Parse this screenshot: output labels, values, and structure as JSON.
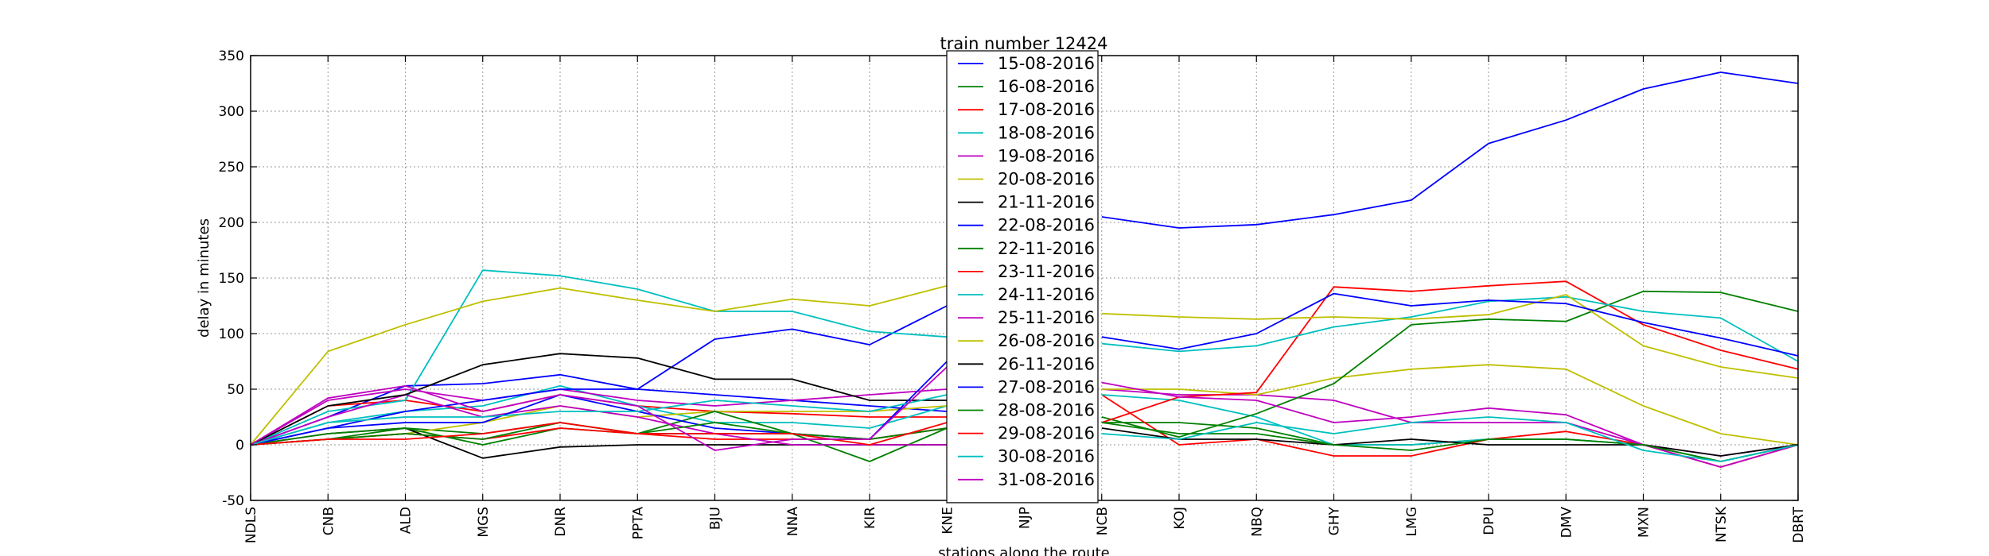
{
  "chart_data": {
    "type": "line",
    "title": "train number 12424",
    "xlabel": "stations along the route",
    "ylabel": "delay in minutes",
    "ylim": [
      -50,
      350
    ],
    "yticks": [
      -50,
      0,
      50,
      100,
      150,
      200,
      250,
      300,
      350
    ],
    "grid": true,
    "legend_position": "top-center",
    "categories": [
      "NDLS",
      "CNB",
      "ALD",
      "MGS",
      "DNR",
      "PPTA",
      "BJU",
      "NNA",
      "KIR",
      "KNE",
      "NJP",
      "NCB",
      "KOJ",
      "NBQ",
      "GHY",
      "LMG",
      "DPU",
      "DMV",
      "MXN",
      "NTSK",
      "DBRT"
    ],
    "series": [
      {
        "name": "15-08-2016",
        "color": "#0000ff",
        "values": [
          0,
          25,
          53,
          55,
          63,
          50,
          45,
          40,
          35,
          30,
          null,
          null,
          null,
          null,
          null,
          null,
          null,
          null,
          null,
          null,
          null
        ]
      },
      {
        "name": "16-08-2016",
        "color": "#008000",
        "values": [
          0,
          5,
          15,
          10,
          20,
          10,
          10,
          10,
          5,
          15,
          null,
          20,
          20,
          15,
          0,
          0,
          5,
          5,
          0,
          -15,
          0
        ]
      },
      {
        "name": "17-08-2016",
        "color": "#ff0000",
        "values": [
          0,
          35,
          40,
          30,
          45,
          35,
          30,
          28,
          25,
          25,
          null,
          45,
          0,
          5,
          -10,
          -10,
          5,
          12,
          0,
          -20,
          0
        ]
      },
      {
        "name": "18-08-2016",
        "color": "#00bfbf",
        "values": [
          0,
          20,
          30,
          35,
          53,
          35,
          20,
          20,
          15,
          35,
          null,
          45,
          40,
          25,
          0,
          0,
          5,
          5,
          0,
          -15,
          0
        ]
      },
      {
        "name": "19-08-2016",
        "color": "#bf00bf",
        "values": [
          0,
          40,
          50,
          40,
          50,
          40,
          35,
          40,
          45,
          50,
          null,
          50,
          45,
          45,
          40,
          20,
          20,
          20,
          0,
          -20,
          0
        ]
      },
      {
        "name": "20-08-2016",
        "color": "#bfbf00",
        "values": [
          0,
          5,
          10,
          20,
          35,
          25,
          30,
          30,
          30,
          35,
          null,
          50,
          50,
          45,
          60,
          68,
          72,
          68,
          35,
          10,
          0
        ]
      },
      {
        "name": "21-11-2016",
        "color": "#000000",
        "values": [
          0,
          10,
          15,
          -12,
          -2,
          0,
          0,
          0,
          0,
          0,
          null,
          null,
          null,
          null,
          null,
          null,
          null,
          null,
          null,
          null,
          null
        ]
      },
      {
        "name": "22-08-2016",
        "color": "#0000ff",
        "values": [
          0,
          15,
          30,
          40,
          50,
          50,
          95,
          104,
          90,
          125,
          null,
          205,
          195,
          198,
          207,
          220,
          271,
          292,
          320,
          335,
          325
        ]
      },
      {
        "name": "22-11-2016",
        "color": "#008000",
        "values": [
          0,
          10,
          15,
          0,
          15,
          10,
          30,
          10,
          -15,
          15,
          null,
          25,
          7,
          28,
          55,
          108,
          113,
          111,
          138,
          137,
          120
        ]
      },
      {
        "name": "23-11-2016",
        "color": "#ff0000",
        "values": [
          0,
          5,
          10,
          5,
          15,
          10,
          5,
          5,
          5,
          15,
          null,
          20,
          43,
          47,
          142,
          138,
          143,
          147,
          108,
          85,
          68
        ]
      },
      {
        "name": "24-11-2016",
        "color": "#00bfbf",
        "values": [
          0,
          30,
          40,
          157,
          152,
          140,
          120,
          120,
          102,
          97,
          null,
          91,
          84,
          89,
          106,
          115,
          129,
          133,
          120,
          114,
          75
        ]
      },
      {
        "name": "25-11-2016",
        "color": "#bf00bf",
        "values": [
          0,
          25,
          45,
          25,
          35,
          25,
          10,
          0,
          0,
          0,
          null,
          56,
          43,
          40,
          20,
          25,
          33,
          27,
          0,
          -10,
          0
        ]
      },
      {
        "name": "26-08-2016",
        "color": "#bfbf00",
        "values": [
          0,
          84,
          108,
          129,
          141,
          130,
          120,
          131,
          125,
          143,
          null,
          118,
          115,
          113,
          115,
          113,
          117,
          135,
          89,
          70,
          60
        ]
      },
      {
        "name": "26-11-2016",
        "color": "#000000",
        "values": [
          0,
          35,
          45,
          72,
          82,
          78,
          59,
          59,
          40,
          40,
          null,
          15,
          5,
          5,
          0,
          5,
          0,
          0,
          0,
          -10,
          0
        ]
      },
      {
        "name": "27-08-2016",
        "color": "#0000ff",
        "values": [
          0,
          15,
          20,
          20,
          45,
          30,
          15,
          10,
          5,
          75,
          null,
          97,
          86,
          100,
          136,
          125,
          130,
          127,
          110,
          96,
          80
        ]
      },
      {
        "name": "28-08-2016",
        "color": "#008000",
        "values": [
          0,
          5,
          10,
          5,
          20,
          10,
          20,
          10,
          5,
          15,
          null,
          20,
          10,
          10,
          0,
          -5,
          5,
          5,
          0,
          -15,
          0
        ]
      },
      {
        "name": "29-08-2016",
        "color": "#ff0000",
        "values": [
          0,
          5,
          5,
          10,
          20,
          10,
          10,
          10,
          0,
          20,
          null,
          null,
          null,
          null,
          null,
          null,
          null,
          null,
          null,
          null,
          null
        ]
      },
      {
        "name": "30-08-2016",
        "color": "#00bfbf",
        "values": [
          0,
          20,
          25,
          25,
          30,
          30,
          40,
          35,
          30,
          45,
          null,
          10,
          5,
          20,
          10,
          20,
          25,
          20,
          -5,
          -15,
          0
        ]
      },
      {
        "name": "31-08-2016",
        "color": "#bf00bf",
        "values": [
          0,
          42,
          53,
          30,
          45,
          35,
          -5,
          5,
          5,
          70,
          null,
          null,
          null,
          null,
          null,
          null,
          null,
          null,
          null,
          null,
          null
        ]
      }
    ]
  }
}
